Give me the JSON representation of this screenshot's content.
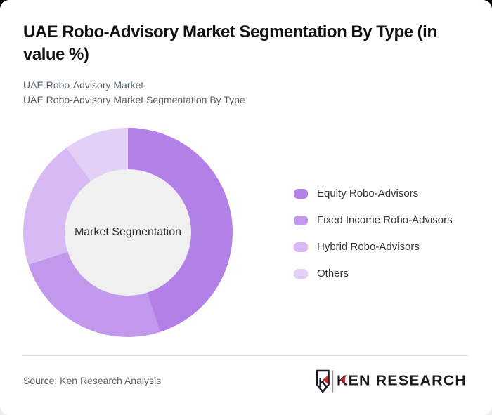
{
  "page": {
    "title": "UAE Robo-Advisory Market Segmentation By Type (in value %)",
    "subtitle_lines": [
      "UAE Robo-Advisory Market",
      "UAE Robo-Advisory Market Segmentation By Type"
    ],
    "source_text": "Source: Ken Research Analysis"
  },
  "chart_data": {
    "type": "pie",
    "subtype": "donut",
    "title": "UAE Robo-Advisory Market Segmentation By Type (in value %)",
    "center_label": "Market Segmentation",
    "categories": [
      "Equity Robo-Advisors",
      "Fixed Income Robo-Advisors",
      "Hybrid Robo-Advisors",
      "Others"
    ],
    "values": [
      45,
      25,
      20,
      10
    ],
    "unit": "percent",
    "colors": [
      "#b280e7",
      "#c198ec",
      "#d7baf3",
      "#e2d0f7"
    ],
    "start_angle_deg": 0,
    "direction": "clockwise",
    "hole_ratio": 0.6,
    "hole_color": "#f0f0f0",
    "legend_position": "right",
    "data_labels_shown": false
  },
  "logo": {
    "name": "Ken Research",
    "text": "KEN RESEARCH",
    "shield_letter": "K",
    "brand_red": "#c42b33",
    "brand_dark": "#171a1f",
    "separator_color": "#8f8f8f"
  }
}
